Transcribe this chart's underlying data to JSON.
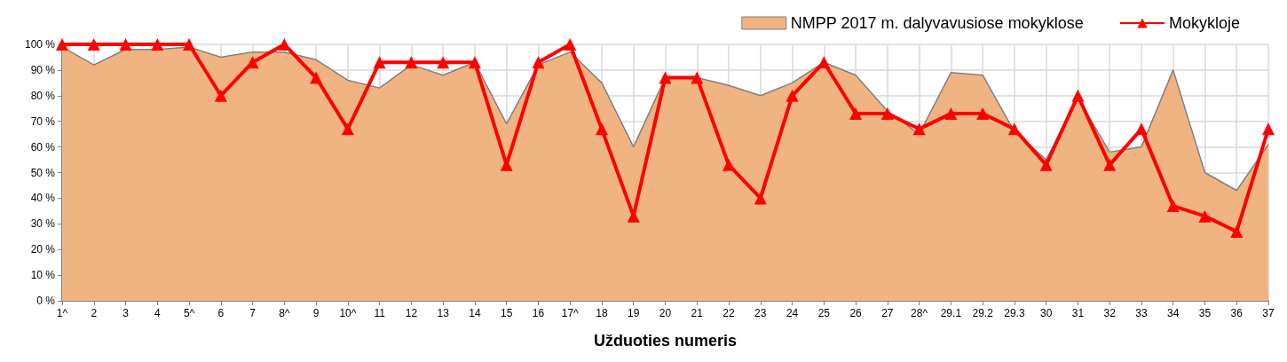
{
  "chart_data": {
    "type": "area",
    "xlabel": "Užduoties numeris",
    "categories": [
      "1^",
      "2",
      "3",
      "4",
      "5^",
      "6",
      "7",
      "8^",
      "9",
      "10^",
      "11",
      "12",
      "13",
      "14",
      "15",
      "16",
      "17^",
      "18",
      "19",
      "20",
      "21",
      "22",
      "23",
      "24",
      "25",
      "26",
      "27",
      "28^",
      "29.1",
      "29.2",
      "29.3",
      "30",
      "31",
      "32",
      "33",
      "34",
      "35",
      "36",
      "37"
    ],
    "series": [
      {
        "name": "NMPP 2017 m. dalyvavusiose mokyklose",
        "type": "area",
        "color": "#f0b482",
        "values": [
          99,
          92,
          98,
          98,
          99,
          95,
          97,
          97,
          94,
          86,
          83,
          92,
          88,
          93,
          69,
          92,
          97,
          85,
          60,
          87,
          87,
          84,
          80,
          85,
          93,
          88,
          74,
          65,
          89,
          88,
          66,
          55,
          79,
          58,
          60,
          90,
          50,
          43,
          61
        ]
      },
      {
        "name": "Mokykloje",
        "type": "line",
        "color": "#ff0000",
        "marker": "triangle",
        "values": [
          100,
          100,
          100,
          100,
          100,
          80,
          93,
          100,
          87,
          67,
          93,
          93,
          93,
          93,
          53,
          93,
          100,
          67,
          33,
          87,
          87,
          53,
          40,
          80,
          93,
          73,
          73,
          67,
          73,
          73,
          67,
          53,
          80,
          53,
          67,
          37,
          33,
          27,
          67
        ]
      }
    ],
    "ylim": [
      0,
      100
    ],
    "yticks": [
      {
        "value": 0,
        "label": "0 %"
      },
      {
        "value": 10,
        "label": "10 %"
      },
      {
        "value": 20,
        "label": "20 %"
      },
      {
        "value": 30,
        "label": "30 %"
      },
      {
        "value": 40,
        "label": "40 %"
      },
      {
        "value": 50,
        "label": "50 %"
      },
      {
        "value": 60,
        "label": "60 %"
      },
      {
        "value": 70,
        "label": "70 %"
      },
      {
        "value": 80,
        "label": "80 %"
      },
      {
        "value": 90,
        "label": "90 %"
      },
      {
        "value": 100,
        "label": "100 %"
      }
    ],
    "grid": true,
    "legend": "top right"
  }
}
